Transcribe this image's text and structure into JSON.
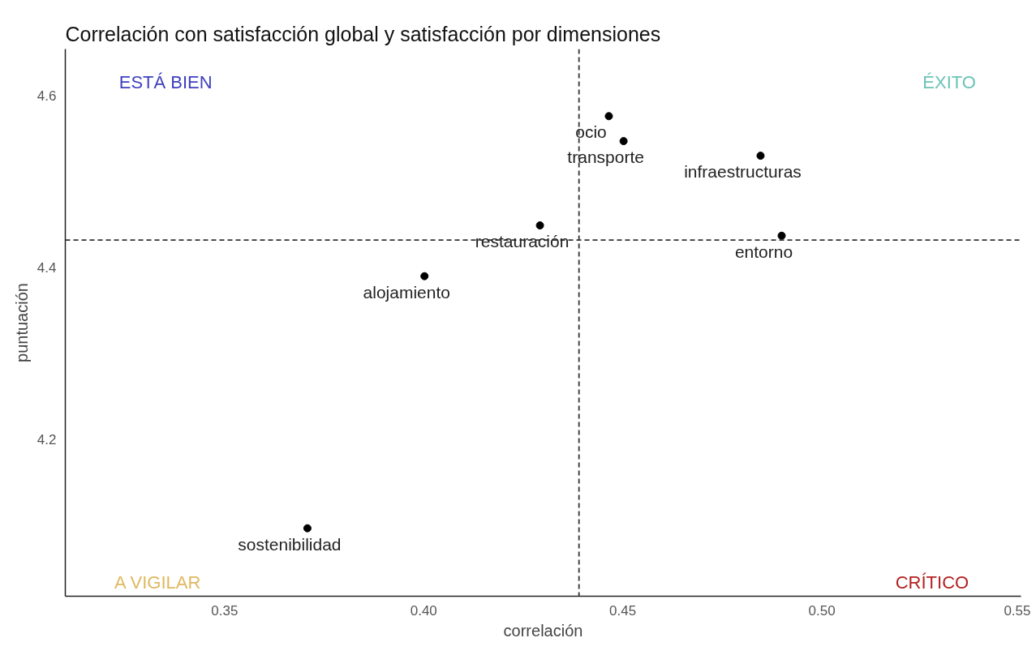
{
  "chart_data": {
    "type": "scatter",
    "title": "Correlación con satisfacción global y satisfacción por dimensiones",
    "xlabel": "correlación",
    "ylabel": "puntuación",
    "x": [
      0.4465,
      0.4502,
      0.4846,
      0.4292,
      0.4899,
      0.4002,
      0.3708
    ],
    "values": [
      4.576,
      4.547,
      4.53,
      4.449,
      4.437,
      4.39,
      4.097
    ],
    "color": "#000000",
    "marker": "circle",
    "xlim": [
      0.31,
      0.55
    ],
    "xticks": [
      0.35,
      {
        "value": 0.4,
        "label": "0.40"
      },
      0.45,
      {
        "value": 0.5,
        "label": "0.50"
      },
      0.55
    ],
    "ylim": [
      4.018,
      4.654
    ],
    "yticks": [
      4.2,
      4.4,
      4.6
    ],
    "grid": false,
    "ref_lines": [
      {
        "axis": "x",
        "value": 0.439,
        "line_style": "dashed",
        "color": "#333333"
      },
      {
        "axis": "y",
        "value": 4.432,
        "line_style": "dashed",
        "color": "#333333"
      }
    ],
    "annotations": [
      {
        "text": "ocio",
        "x": 0.4465,
        "y": 4.576
      },
      {
        "text": "transporte",
        "x": 0.4502,
        "y": 4.547
      },
      {
        "text": "infraestructuras",
        "x": 0.4846,
        "y": 4.53
      },
      {
        "text": "restauración",
        "x": 0.4292,
        "y": 4.449
      },
      {
        "text": "entorno",
        "x": 0.4899,
        "y": 4.437
      },
      {
        "text": "alojamiento",
        "x": 0.4002,
        "y": 4.39
      },
      {
        "text": "sostenibilidad",
        "x": 0.3708,
        "y": 4.097
      },
      "ESTÁ BIEN",
      "ÉXITO",
      "A VIGILAR",
      "CRÍTICO"
    ]
  }
}
